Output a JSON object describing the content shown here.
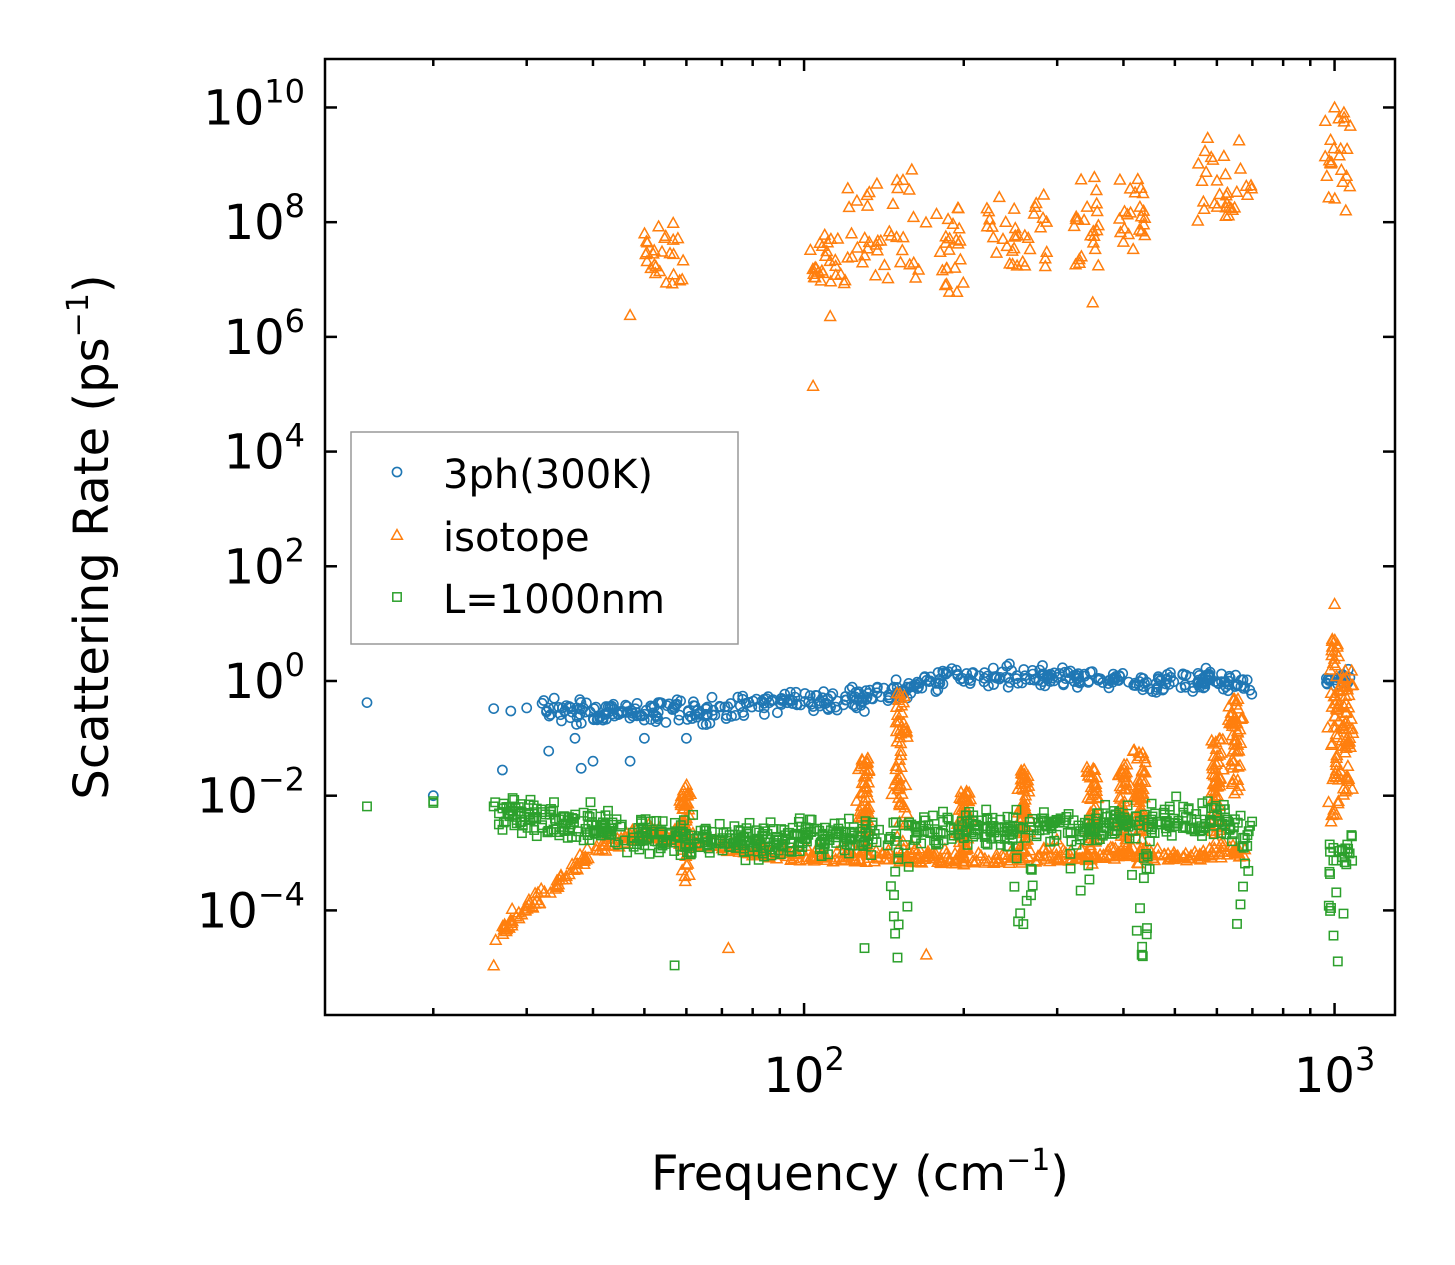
{
  "chart_data": {
    "type": "scatter",
    "title": "",
    "xlabel": "Frequency (cm",
    "xlabel_sup": "−1",
    "xlabel_close": ")",
    "ylabel": "Scattering Rate (ps",
    "ylabel_sup": "−1",
    "ylabel_close": ")",
    "xscale": "log",
    "yscale": "log",
    "xlim": [
      12.5,
      1300
    ],
    "ylim": [
      1.5e-06,
      70000000000
    ],
    "x_ticks": [
      {
        "base": "10",
        "exp": "2",
        "value": 100
      },
      {
        "base": "10",
        "exp": "3",
        "value": 1000
      }
    ],
    "y_ticks": [
      {
        "base": "10",
        "exp": "−4",
        "value": 0.0001
      },
      {
        "base": "10",
        "exp": "−2",
        "value": 0.01
      },
      {
        "base": "10",
        "exp": "0",
        "value": 1
      },
      {
        "base": "10",
        "exp": "2",
        "value": 100
      },
      {
        "base": "10",
        "exp": "4",
        "value": 10000
      },
      {
        "base": "10",
        "exp": "6",
        "value": 1000000
      },
      {
        "base": "10",
        "exp": "8",
        "value": 100000000
      },
      {
        "base": "10",
        "exp": "10",
        "value": 10000000000
      }
    ],
    "legend_position": "center-left",
    "series": [
      {
        "name": "3ph(300K)",
        "marker": "circle",
        "color": "#1f77b4",
        "trend": [
          [
            15,
            0.42
          ],
          [
            26,
            0.33
          ],
          [
            30,
            0.33
          ],
          [
            35,
            0.3
          ],
          [
            45,
            0.28
          ],
          [
            55,
            0.3
          ],
          [
            65,
            0.3
          ],
          [
            80,
            0.4
          ],
          [
            95,
            0.45
          ],
          [
            110,
            0.45
          ],
          [
            130,
            0.5
          ],
          [
            150,
            0.6
          ],
          [
            165,
            0.9
          ],
          [
            200,
            1.2
          ],
          [
            250,
            1.2
          ],
          [
            300,
            1.2
          ],
          [
            350,
            1.1
          ],
          [
            420,
            0.9
          ],
          [
            500,
            1.0
          ],
          [
            600,
            1.0
          ],
          [
            680,
            1.0
          ]
        ],
        "band_x": [
          [
            32,
            700
          ],
          [
            960,
            1080
          ]
        ],
        "spread_decades": 0.18,
        "outliers": [
          [
            20,
            0.01
          ],
          [
            27,
            0.028
          ],
          [
            33,
            0.06
          ],
          [
            37,
            0.1
          ],
          [
            38,
            0.03
          ],
          [
            40,
            0.04
          ],
          [
            47,
            0.04
          ],
          [
            50,
            0.1
          ],
          [
            60,
            0.1
          ]
        ],
        "count": 520
      },
      {
        "name": "isotope",
        "marker": "triangle",
        "color": "#ff7f0e",
        "high_clusters": [
          {
            "x": [
              50,
              60
            ],
            "logy": [
              6.9,
              8.0
            ]
          },
          {
            "x": [
              102,
              120
            ],
            "logy": [
              6.9,
              7.8
            ]
          },
          {
            "x": [
              120,
              170
            ],
            "logy": [
              7.0,
              9.0
            ]
          },
          {
            "x": [
              175,
              200
            ],
            "logy": [
              6.7,
              8.3
            ]
          },
          {
            "x": [
              220,
              290
            ],
            "logy": [
              7.2,
              8.5
            ]
          },
          {
            "x": [
              320,
              360
            ],
            "logy": [
              7.2,
              8.8
            ]
          },
          {
            "x": [
              390,
              440
            ],
            "logy": [
              7.5,
              8.8
            ]
          },
          {
            "x": [
              550,
              700
            ],
            "logy": [
              8.0,
              9.5
            ]
          },
          {
            "x": [
              960,
              1080
            ],
            "logy": [
              8.3,
              10.0
            ]
          }
        ],
        "high_outliers": [
          [
            47,
            2400000
          ],
          [
            104,
            140000
          ],
          [
            112,
            2300000
          ],
          [
            350,
            4000000
          ],
          [
            1000,
            10000000000
          ],
          [
            1050,
            160000000
          ]
        ],
        "low_trend": [
          [
            26,
            3e-05
          ],
          [
            30,
            0.0001
          ],
          [
            35,
            0.0003
          ],
          [
            40,
            0.001
          ],
          [
            50,
            0.002
          ],
          [
            60,
            0.0015
          ],
          [
            80,
            0.001
          ],
          [
            100,
            0.0008
          ],
          [
            150,
            0.0008
          ],
          [
            200,
            0.0007
          ],
          [
            300,
            0.0008
          ],
          [
            400,
            0.0009
          ],
          [
            500,
            0.0008
          ],
          [
            700,
            0.001
          ]
        ],
        "low_spikes": [
          {
            "x": 60,
            "logy": [
              -3.5,
              -1.8
            ]
          },
          {
            "x": 130,
            "logy": [
              -3.2,
              -1.3
            ]
          },
          {
            "x": 152,
            "logy": [
              -3.0,
              -0.2
            ]
          },
          {
            "x": 200,
            "logy": [
              -3.2,
              -1.9
            ]
          },
          {
            "x": 260,
            "logy": [
              -3.2,
              -1.5
            ]
          },
          {
            "x": 350,
            "logy": [
              -3.2,
              -1.5
            ]
          },
          {
            "x": 400,
            "logy": [
              -3.2,
              -1.4
            ]
          },
          {
            "x": 430,
            "logy": [
              -3.2,
              -1.2
            ]
          },
          {
            "x": 600,
            "logy": [
              -3.0,
              -1.0
            ]
          },
          {
            "x": 650,
            "logy": [
              -2.2,
              -0.3
            ]
          },
          {
            "x": 1000,
            "logy": [
              -2.5,
              0.8
            ]
          },
          {
            "x": 1050,
            "logy": [
              -2.3,
              0.2
            ]
          }
        ],
        "low_outliers": [
          [
            26,
            1.1e-05
          ],
          [
            72,
            2.2e-05
          ],
          [
            170,
            1.7e-05
          ],
          [
            1000,
            22
          ],
          [
            990,
            5
          ]
        ],
        "count": 980
      },
      {
        "name": "L=1000nm",
        "marker": "square",
        "color": "#2ca02c",
        "trend": [
          [
            15,
            0.0065
          ],
          [
            20,
            0.008
          ],
          [
            26,
            0.006
          ],
          [
            30,
            0.004
          ],
          [
            40,
            0.003
          ],
          [
            50,
            0.002
          ],
          [
            60,
            0.002
          ],
          [
            80,
            0.0015
          ],
          [
            100,
            0.002
          ],
          [
            150,
            0.002
          ],
          [
            200,
            0.003
          ],
          [
            300,
            0.003
          ],
          [
            400,
            0.003
          ],
          [
            500,
            0.004
          ],
          [
            600,
            0.004
          ],
          [
            700,
            0.002
          ]
        ],
        "band_x": [
          [
            26,
            700
          ],
          [
            960,
            1080
          ]
        ],
        "spread_decades": 0.55,
        "dips": [
          {
            "x": 152,
            "min": 2e-05
          },
          {
            "x": 260,
            "min": 5e-05
          },
          {
            "x": 330,
            "min": 5e-05
          },
          {
            "x": 430,
            "min": 1.5e-05
          },
          {
            "x": 680,
            "min": 5e-05
          },
          {
            "x": 1000,
            "min": 1.2e-05
          }
        ],
        "outliers": [
          [
            57,
            1.1e-05
          ],
          [
            130,
            2.2e-05
          ],
          [
            150,
            1.5e-05
          ]
        ],
        "count": 820
      }
    ]
  }
}
